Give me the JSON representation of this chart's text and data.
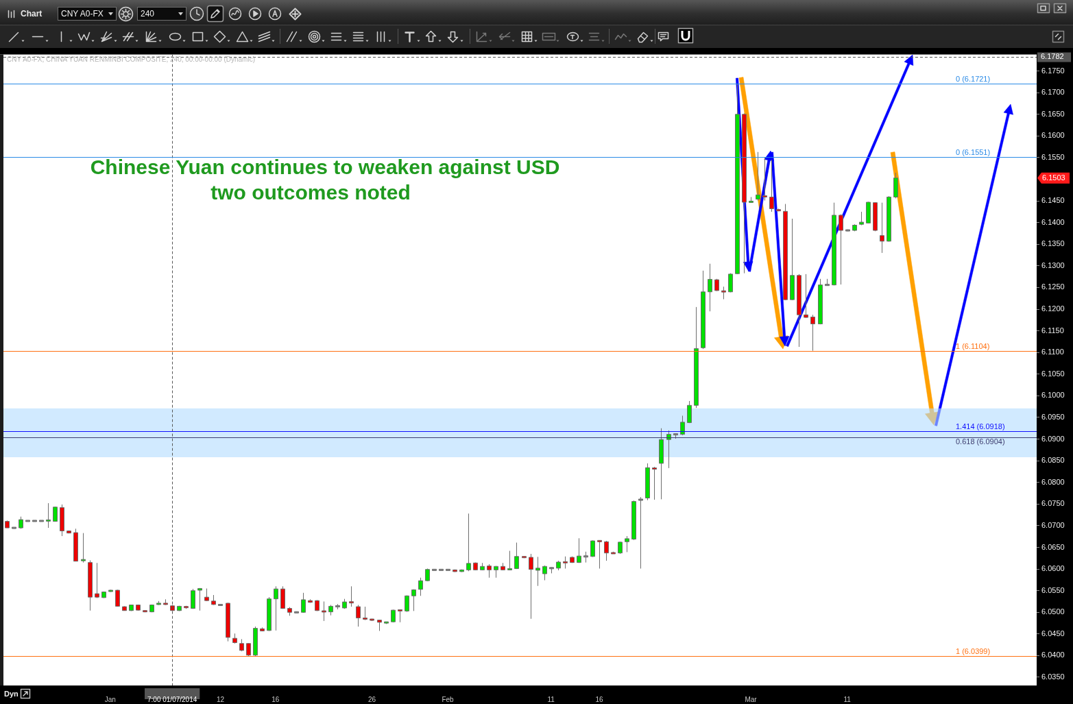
{
  "chart_data": {
    "type": "candlestick",
    "title": "Chinese Yuan continues to weaken against USD",
    "subtitle": "two outcomes noted",
    "annotations": [
      "CNY A0-FX, CHINA YUAN RENMINBI COMPOSITE, 240, 00:00-00:00 (Dynamic)",
      "Chart",
      "CNY A0-FX",
      "240",
      "Dyn",
      "6.1503"
    ],
    "categories": [
      null,
      null,
      null,
      null,
      null,
      null,
      null,
      null,
      null,
      null,
      null,
      null,
      null,
      null,
      null,
      "Jan",
      null,
      null,
      null,
      null,
      null,
      null,
      null,
      null,
      "7:00 01/07/2014",
      null,
      null,
      null,
      null,
      null,
      null,
      "12",
      null,
      null,
      null,
      null,
      null,
      null,
      null,
      "16",
      null,
      null,
      null,
      null,
      null,
      null,
      null,
      null,
      null,
      null,
      null,
      null,
      null,
      "26",
      null,
      null,
      null,
      null,
      null,
      null,
      null,
      null,
      null,
      null,
      "Feb",
      null,
      null,
      null,
      null,
      null,
      null,
      null,
      null,
      null,
      null,
      null,
      null,
      null,
      null,
      "11",
      null,
      null,
      null,
      null,
      null,
      null,
      "16",
      null,
      null,
      null,
      null,
      null,
      null,
      null,
      null,
      null,
      null,
      null,
      null,
      null,
      null,
      null,
      null,
      null,
      null,
      null,
      null,
      null,
      "Mar",
      null,
      null,
      null,
      null,
      null,
      null,
      null,
      null,
      null,
      null,
      null,
      null,
      null,
      "11",
      null,
      null,
      null,
      null,
      null,
      null,
      null,
      null,
      null,
      null,
      null,
      null,
      null,
      null,
      null,
      null,
      null,
      null,
      null,
      null,
      null,
      null,
      null,
      null,
      null,
      null,
      null
    ],
    "ohlc": [
      [
        6.071,
        6.0712,
        6.0695,
        6.0695
      ],
      [
        6.0695,
        6.0696,
        6.0693,
        6.0695
      ],
      [
        6.0695,
        6.0721,
        6.0693,
        6.0714
      ],
      [
        6.0711,
        6.0712,
        6.071,
        6.0711
      ],
      [
        6.0711,
        6.0712,
        6.071,
        6.0711
      ],
      [
        6.0711,
        6.0712,
        6.071,
        6.0711
      ],
      [
        6.0711,
        6.0752,
        6.0695,
        6.0713
      ],
      [
        6.071,
        6.0744,
        6.071,
        6.0743
      ],
      [
        6.0742,
        6.0749,
        6.0676,
        6.0688
      ],
      [
        6.0688,
        6.0689,
        6.0682,
        6.0683
      ],
      [
        6.0684,
        6.0693,
        6.0618,
        6.0618
      ],
      [
        6.0619,
        6.0683,
        6.0615,
        6.0622
      ],
      [
        6.0615,
        6.062,
        6.0504,
        6.0535
      ],
      [
        6.0543,
        6.0614,
        6.0533,
        6.0535
      ],
      [
        6.0534,
        6.0548,
        6.0533,
        6.0547
      ],
      [
        6.0548,
        6.0552,
        6.0547,
        6.0551
      ],
      [
        6.0551,
        6.0552,
        6.0513,
        6.0514
      ],
      [
        6.0513,
        6.0514,
        6.0504,
        6.0504
      ],
      [
        6.0504,
        6.0517,
        6.0503,
        6.0517
      ],
      [
        6.0517,
        6.0518,
        6.0504,
        6.0505
      ],
      [
        6.0504,
        6.0505,
        6.05,
        6.0501
      ],
      [
        6.0501,
        6.0518,
        6.05,
        6.0517
      ],
      [
        6.0518,
        6.0526,
        6.0517,
        6.0521
      ],
      [
        6.0521,
        6.053,
        6.0517,
        6.0518
      ],
      [
        6.0515,
        6.0517,
        6.0503,
        6.0504
      ],
      [
        6.0504,
        6.0515,
        6.0503,
        6.0514
      ],
      [
        6.0513,
        6.0515,
        6.0508,
        6.0511
      ],
      [
        6.0509,
        6.0554,
        6.0508,
        6.055
      ],
      [
        6.0551,
        6.0556,
        6.0504,
        6.0555
      ],
      [
        6.0535,
        6.0555,
        6.0526,
        6.0527
      ],
      [
        6.0526,
        6.054,
        6.0517,
        6.0518
      ],
      [
        6.0517,
        6.0519,
        6.0516,
        6.0517
      ],
      [
        6.0521,
        6.0522,
        6.0433,
        6.0442
      ],
      [
        6.044,
        6.0451,
        6.0428,
        6.043
      ],
      [
        6.0428,
        6.0438,
        6.041,
        6.0412
      ],
      [
        6.0428,
        6.0429,
        6.0399,
        6.0401
      ],
      [
        6.0401,
        6.0467,
        6.0399,
        6.0463
      ],
      [
        6.0462,
        6.0465,
        6.0456,
        6.0457
      ],
      [
        6.0458,
        6.0535,
        6.0457,
        6.0531
      ],
      [
        6.0531,
        6.056,
        6.0458,
        6.0554
      ],
      [
        6.0554,
        6.056,
        6.0508,
        6.0509
      ],
      [
        6.0509,
        6.0512,
        6.0492,
        6.05
      ],
      [
        6.05,
        6.0502,
        6.0499,
        6.05
      ],
      [
        6.05,
        6.0545,
        6.0499,
        6.0529
      ],
      [
        6.0527,
        6.053,
        6.0522,
        6.0523
      ],
      [
        6.0527,
        6.0528,
        6.0503,
        6.0504
      ],
      [
        6.0503,
        6.0525,
        6.048,
        6.0501
      ],
      [
        6.0501,
        6.0517,
        6.0493,
        6.0514
      ],
      [
        6.0514,
        6.0519,
        6.0507,
        6.0514
      ],
      [
        6.051,
        6.0531,
        6.0508,
        6.0524
      ],
      [
        6.0524,
        6.056,
        6.0513,
        6.0522
      ],
      [
        6.0513,
        6.0517,
        6.0467,
        6.0487
      ],
      [
        6.0487,
        6.0513,
        6.0482,
        6.0484
      ],
      [
        6.0484,
        6.0485,
        6.048,
        6.0482
      ],
      [
        6.0482,
        6.0483,
        6.0457,
        6.0477
      ],
      [
        6.0476,
        6.0478,
        6.0473,
        6.0477
      ],
      [
        6.0478,
        6.0506,
        6.0477,
        6.0505
      ],
      [
        6.0505,
        6.0506,
        6.0477,
        6.0504
      ],
      [
        6.0503,
        6.0539,
        6.0501,
        6.0538
      ],
      [
        6.0538,
        6.0553,
        6.0503,
        6.0552
      ],
      [
        6.0553,
        6.058,
        6.0538,
        6.0573
      ],
      [
        6.0573,
        6.0601,
        6.0572,
        6.0599
      ],
      [
        6.0598,
        6.0599,
        6.0597,
        6.0598
      ],
      [
        6.0598,
        6.0599,
        6.0597,
        6.0598
      ],
      [
        6.0598,
        6.0599,
        6.0597,
        6.0598
      ],
      [
        6.0598,
        6.0599,
        6.0593,
        6.0594
      ],
      [
        6.0594,
        6.0599,
        6.0593,
        6.0598
      ],
      [
        6.0598,
        6.0728,
        6.0595,
        6.0613
      ],
      [
        6.0614,
        6.0615,
        6.0597,
        6.0598
      ],
      [
        6.0598,
        6.0614,
        6.0597,
        6.0606
      ],
      [
        6.0607,
        6.0611,
        6.058,
        6.0598
      ],
      [
        6.0598,
        6.0607,
        6.058,
        6.0606
      ],
      [
        6.0606,
        6.0614,
        6.0597,
        6.0598
      ],
      [
        6.0598,
        6.0642,
        6.0597,
        6.0601
      ],
      [
        6.0601,
        6.0661,
        6.06,
        6.0629
      ],
      [
        6.0628,
        6.0629,
        6.0625,
        6.0627
      ],
      [
        6.0627,
        6.0635,
        6.0485,
        6.0599
      ],
      [
        6.0597,
        6.0628,
        6.0561,
        6.0602
      ],
      [
        6.0589,
        6.0608,
        6.0574,
        6.0606
      ],
      [
        6.0602,
        6.0604,
        6.059,
        6.0602
      ],
      [
        6.0602,
        6.0619,
        6.0597,
        6.0616
      ],
      [
        6.0616,
        6.0629,
        6.0601,
        6.0615
      ],
      [
        6.0627,
        6.0629,
        6.0614,
        6.0615
      ],
      [
        6.0615,
        6.0671,
        6.0614,
        6.063
      ],
      [
        6.0629,
        6.064,
        6.0615,
        6.0629
      ],
      [
        6.0629,
        6.0666,
        6.0628,
        6.0665
      ],
      [
        6.0665,
        6.0666,
        6.0601,
        6.0664
      ],
      [
        6.0663,
        6.0665,
        6.0619,
        6.0637
      ],
      [
        6.0637,
        6.064,
        6.0635,
        6.0636
      ],
      [
        6.0637,
        6.0663,
        6.0635,
        6.0662
      ],
      [
        6.0663,
        6.0676,
        6.0639,
        6.067
      ],
      [
        6.0669,
        6.0758,
        6.0667,
        6.0756
      ],
      [
        6.076,
        6.0766,
        6.0601,
        6.076
      ],
      [
        6.0764,
        6.0844,
        6.0759,
        6.0834
      ],
      [
        6.0833,
        6.0836,
        6.076,
        6.0831
      ],
      [
        6.0844,
        6.0925,
        6.0761,
        6.0899
      ],
      [
        6.0899,
        6.092,
        6.0833,
        6.0911
      ],
      [
        6.0911,
        6.0913,
        6.0901,
        6.0911
      ],
      [
        6.0911,
        6.0954,
        6.0909,
        6.0939
      ],
      [
        6.0938,
        6.0988,
        6.0937,
        6.0978
      ],
      [
        6.0978,
        6.1205,
        6.0972,
        6.1109
      ],
      [
        6.1111,
        6.1289,
        6.1108,
        6.124
      ],
      [
        6.124,
        6.1305,
        6.1195,
        6.1269
      ],
      [
        6.1268,
        6.127,
        6.1242,
        6.1243
      ],
      [
        6.1242,
        6.1252,
        6.1223,
        6.124
      ],
      [
        6.124,
        6.1283,
        6.1239,
        6.1281
      ],
      [
        6.1282,
        6.1721,
        6.1281,
        6.165
      ],
      [
        6.165,
        6.1652,
        6.1283,
        6.1447
      ],
      [
        6.1447,
        6.1459,
        6.1446,
        6.1449
      ],
      [
        6.1454,
        6.1563,
        6.1451,
        6.1464
      ],
      [
        6.1462,
        6.155,
        6.1451,
        6.1459
      ],
      [
        6.1459,
        6.1545,
        6.1425,
        6.1432
      ],
      [
        6.143,
        6.1432,
        6.1426,
        6.1427
      ],
      [
        6.1426,
        6.1443,
        6.1221,
        6.1222
      ],
      [
        6.1222,
        6.1409,
        6.1221,
        6.1278
      ],
      [
        6.1278,
        6.1281,
        6.1113,
        6.1187
      ],
      [
        6.1187,
        6.1281,
        6.118,
        6.1181
      ],
      [
        6.1182,
        6.1187,
        6.1104,
        6.1166
      ],
      [
        6.1166,
        6.127,
        6.1165,
        6.1256
      ],
      [
        6.1256,
        6.127,
        6.1255,
        6.1256
      ],
      [
        6.1256,
        6.1446,
        6.1255,
        6.1417
      ],
      [
        6.1417,
        6.1419,
        6.1257,
        6.1382
      ],
      [
        6.1382,
        6.1384,
        6.138,
        6.1382
      ],
      [
        6.1382,
        6.1396,
        6.138,
        6.1394
      ],
      [
        6.1396,
        6.1425,
        6.1394,
        6.1401
      ],
      [
        6.1399,
        6.1448,
        6.1398,
        6.1447
      ],
      [
        6.1446,
        6.1447,
        6.138,
        6.1382
      ],
      [
        6.137,
        6.1446,
        6.133,
        6.1357
      ],
      [
        6.1357,
        6.1461,
        6.1356,
        6.1459
      ],
      [
        6.1459,
        6.1515,
        6.1456,
        6.1503
      ],
      null,
      null,
      null,
      null,
      null,
      null,
      null,
      null,
      null,
      null,
      null,
      null,
      null,
      null,
      null,
      null,
      null,
      null,
      null,
      null
    ],
    "colors": [
      "#ee0000",
      "#808080",
      "#00e000",
      "#808080",
      "#808080",
      "#808080",
      "#00e000",
      "#00e000",
      "#ee0000",
      "#ee0000",
      "#ee0000",
      "#00e000",
      "#ee0000",
      "#ee0000",
      "#00e000",
      "#00e000",
      "#ee0000",
      "#ee0000",
      "#00e000",
      "#ee0000",
      "#ee0000",
      "#00e000",
      "#00e000",
      "#ee0000",
      "#ee0000",
      "#00e000",
      "#ee0000",
      "#00e000",
      "#00e000",
      "#ee0000",
      "#ee0000",
      "#808080",
      "#ee0000",
      "#ee0000",
      "#ee0000",
      "#ee0000",
      "#00e000",
      "#ee0000",
      "#00e000",
      "#00e000",
      "#ee0000",
      "#ee0000",
      "#808080",
      "#00e000",
      "#ee0000",
      "#ee0000",
      "#ee0000",
      "#00e000",
      "#808080",
      "#00e000",
      "#ee0000",
      "#ee0000",
      "#ee0000",
      "#ee0000",
      "#ee0000",
      "#00e000",
      "#00e000",
      "#ee0000",
      "#00e000",
      "#00e000",
      "#00e000",
      "#00e000",
      "#808080",
      "#808080",
      "#808080",
      "#ee0000",
      "#00e000",
      "#00e000",
      "#ee0000",
      "#00e000",
      "#ee0000",
      "#00e000",
      "#ee0000",
      "#00e000",
      "#00e000",
      "#ee0000",
      "#ee0000",
      "#00e000",
      "#00e000",
      "#808080",
      "#00e000",
      "#ee0000",
      "#ee0000",
      "#00e000",
      "#808080",
      "#00e000",
      "#ee0000",
      "#ee0000",
      "#ee0000",
      "#00e000",
      "#00e000",
      "#00e000",
      "#808080",
      "#00e000",
      "#ee0000",
      "#00e000",
      "#00e000",
      "#808080",
      "#00e000",
      "#00e000",
      "#00e000",
      "#00e000",
      "#00e000",
      "#ee0000",
      "#ee0000",
      "#00e000",
      "#00e000",
      "#ee0000",
      "#00e000",
      "#00e000",
      "#ee0000",
      "#ee0000",
      "#ee0000",
      "#ee0000",
      "#00e000",
      "#ee0000",
      "#ee0000",
      "#ee0000",
      "#00e000",
      "#808080",
      "#00e000",
      "#ee0000",
      "#808080",
      "#00e000",
      "#00e000",
      "#00e000",
      "#ee0000",
      "#ee0000",
      "#00e000",
      "#00e000",
      null,
      null,
      null,
      null,
      null,
      null,
      null,
      null,
      null,
      null,
      null,
      null,
      null,
      null,
      null,
      null,
      null,
      null,
      null,
      null
    ],
    "ylim": [
      6.0331,
      6.1788
    ],
    "yticks": [
      {
        "value": 6.035,
        "label": "6.0350"
      },
      {
        "value": 6.04,
        "label": "6.0400"
      },
      {
        "value": 6.045,
        "label": "6.0450"
      },
      {
        "value": 6.05,
        "label": "6.0500"
      },
      {
        "value": 6.055,
        "label": "6.0550"
      },
      {
        "value": 6.06,
        "label": "6.0600"
      },
      {
        "value": 6.065,
        "label": "6.0650"
      },
      {
        "value": 6.07,
        "label": "6.0700"
      },
      {
        "value": 6.075,
        "label": "6.0750"
      },
      {
        "value": 6.08,
        "label": "6.0800"
      },
      {
        "value": 6.085,
        "label": "6.0850"
      },
      {
        "value": 6.09,
        "label": "6.0900"
      },
      {
        "value": 6.095,
        "label": "6.0950"
      },
      {
        "value": 6.1,
        "label": "6.1000"
      },
      {
        "value": 6.105,
        "label": "6.1050"
      },
      {
        "value": 6.11,
        "label": "6.1100"
      },
      {
        "value": 6.115,
        "label": "6.1150"
      },
      {
        "value": 6.12,
        "label": "6.1200"
      },
      {
        "value": 6.125,
        "label": "6.1250"
      },
      {
        "value": 6.13,
        "label": "6.1300"
      },
      {
        "value": 6.135,
        "label": "6.1350"
      },
      {
        "value": 6.14,
        "label": "6.1400"
      },
      {
        "value": 6.145,
        "label": "6.1450"
      },
      {
        "value": 6.155,
        "label": "6.1550"
      },
      {
        "value": 6.16,
        "label": "6.1600"
      },
      {
        "value": 6.165,
        "label": "6.1650"
      },
      {
        "value": 6.17,
        "label": "6.1700"
      },
      {
        "value": 6.175,
        "label": "6.1750"
      }
    ],
    "ref_lines": [
      {
        "axis": "y",
        "value": 6.1782,
        "label": "6.1782",
        "line_style": "dashed",
        "color": "#555555"
      },
      {
        "axis": "x",
        "value": "7:00 01/07/2014",
        "line_style": "dashed",
        "color": "#555555"
      },
      {
        "axis": "y",
        "value": 6.1721,
        "label": "0 (6.1721)",
        "color": "#2a8ae6"
      },
      {
        "axis": "y",
        "value": 6.1551,
        "label": "0 (6.1551)",
        "color": "#2a8ae6"
      },
      {
        "axis": "y",
        "value": 6.1104,
        "label": "1 (6.1104)",
        "color": "#ff7010"
      },
      {
        "axis": "y",
        "value": 6.0918,
        "label": "1.414 (6.0918)",
        "color": "#1010ff"
      },
      {
        "axis": "y",
        "value": 6.0904,
        "label": "0.618 (6.0904)",
        "color": "#3c3c6e"
      },
      {
        "axis": "y",
        "value": 6.0399,
        "label": "1 (6.0399)",
        "color": "#ff7010"
      }
    ],
    "bands": [
      {
        "axis": "y",
        "from": 6.0858,
        "to": 6.0971,
        "color": "#b3dcff"
      }
    ]
  }
}
